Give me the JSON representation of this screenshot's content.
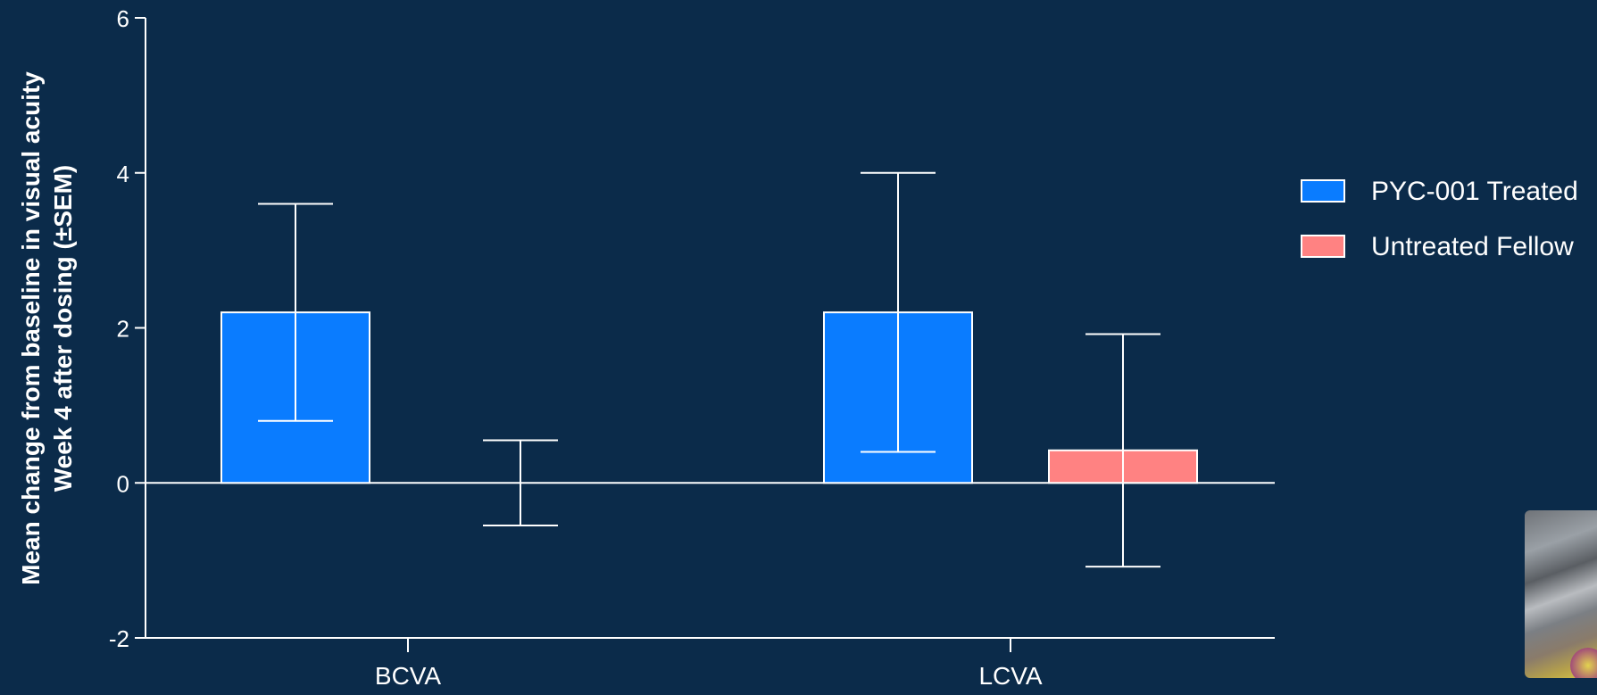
{
  "chart_data": {
    "type": "bar",
    "categories": [
      "BCVA",
      "LCVA"
    ],
    "series": [
      {
        "name": "PYC-001 Treated",
        "color": "#0a7cff",
        "values": [
          2.2,
          2.2
        ],
        "sem": [
          1.4,
          1.8
        ]
      },
      {
        "name": "Untreated Fellow",
        "color": "#ff8282",
        "values": [
          0.0,
          0.42
        ],
        "sem": [
          0.55,
          1.5
        ]
      }
    ],
    "xlabel": "",
    "ylabel_lines": [
      "Mean change from baseline in visual acuity",
      "Week 4 after dosing (±SEM)"
    ],
    "ylim": [
      -2,
      6
    ],
    "yticks": [
      -2,
      0,
      2,
      4,
      6
    ],
    "ytick_labels": [
      "-2",
      "0",
      "2",
      "4",
      "6"
    ],
    "grid": false,
    "legend_position": "right",
    "error_bar_color": "#ffffff",
    "axis_color": "#ffffff",
    "background": "#0b2b4a"
  }
}
